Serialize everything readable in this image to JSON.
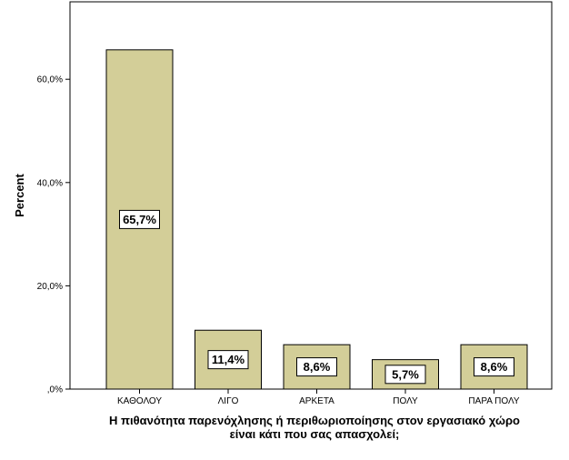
{
  "chart_data": {
    "type": "bar",
    "categories": [
      "ΚΑΘΟΛΟΥ",
      "ΛΙΓΟ",
      "ΑΡΚΕΤΑ",
      "ΠΟΛΥ",
      "ΠΑΡΑ ΠΟΛΥ"
    ],
    "values": [
      65.7,
      11.4,
      8.6,
      5.7,
      8.6
    ],
    "data_labels": [
      "65,7%",
      "11,4%",
      "8,6%",
      "5,7%",
      "8,6%"
    ],
    "title": "",
    "xlabel_lines": [
      "Η πιθανότητα παρενόχλησης ή περιθωριοποίησης στον εργασιακό χώρο",
      "είναι κάτι που σας απασχολεί;"
    ],
    "ylabel": "Percent",
    "ylim": [
      0,
      75
    ],
    "yticks": [
      0,
      20,
      40,
      60
    ],
    "ytick_labels": [
      ",0%",
      "20,0%",
      "40,0%",
      "60,0%"
    ],
    "grid": false,
    "legend": "none",
    "colors": {
      "bar_fill": "#D3CE98",
      "bar_stroke": "#000000",
      "plot_background": "#ffffff",
      "label_box": "#ffffff"
    }
  }
}
